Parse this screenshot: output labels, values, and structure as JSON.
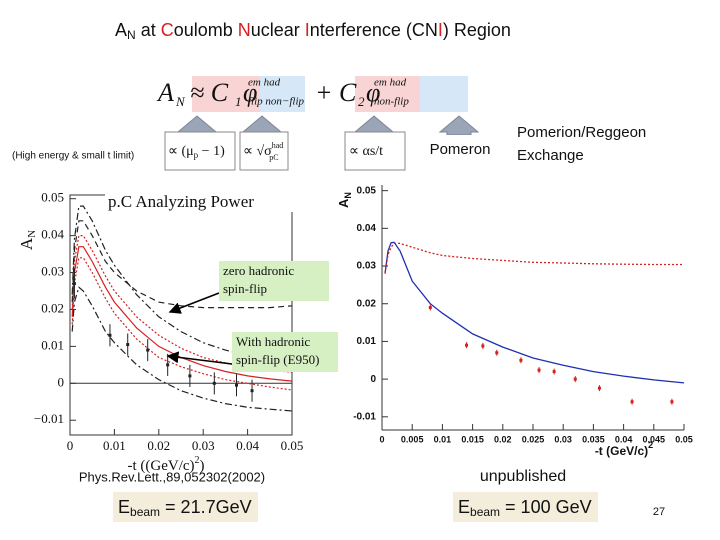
{
  "slide": {
    "title": [
      "A",
      "N",
      " at ",
      "C",
      "oulomb ",
      "N",
      "uclear ",
      "I",
      "nterference (CN",
      "I",
      ") Region"
    ],
    "formula": {
      "lhs": "A",
      "lhs_sub": "N",
      "approx": "≈ C",
      "c1_sub": "1",
      "phi": "φ",
      "sup1": "em had",
      "sub1": "flip non−flip",
      "plus": "+ C",
      "c2_sub": "2",
      "sup2": "em had",
      "sub2": "non-flip"
    },
    "limit_note": "(High energy & small t limit)",
    "prop1": [
      "∝ (μ",
      "p",
      " − 1)"
    ],
    "prop2": [
      "∝ √σ",
      "had",
      "pC"
    ],
    "prop3": "∝ αs/t",
    "pomeron": "Pomeron",
    "reggeon": [
      "Pomerion/Reggeon",
      "Exchange"
    ],
    "reference": "Phys.Rev.Lett.,89,052302(2002)",
    "unpublished": "unpublished",
    "ebeam_left": [
      "E",
      "beam",
      " = 21.7GeV"
    ],
    "ebeam_right": [
      "E",
      "beam",
      " = 100 GeV"
    ],
    "page": "27"
  },
  "chart_data": [
    {
      "type": "line",
      "title": "p.C Analyzing Power",
      "x_label": [
        "-t ((GeV/c)",
        "2",
        ")"
      ],
      "y_label": [
        "A",
        "N"
      ],
      "xlim": [
        0,
        0.05
      ],
      "ylim": [
        -0.014,
        0.051
      ],
      "xticks": [
        0,
        0.01,
        0.02,
        0.03,
        0.04,
        0.05
      ],
      "yticks": [
        {
          "value": -0.01,
          "label": "−0.01"
        },
        0,
        0.01,
        0.02,
        0.03,
        0.04,
        0.05
      ],
      "annotations": [
        {
          "lines": [
            "zero hadronic",
            "spin-flip"
          ]
        },
        {
          "lines": [
            "With hadronic",
            "spin-flip (E950)"
          ]
        }
      ],
      "series": [
        {
          "color": "#d62020",
          "style": "solid",
          "x": [
            0.0005,
            0.001,
            0.002,
            0.003,
            0.005,
            0.008,
            0.01,
            0.015,
            0.02,
            0.025,
            0.03,
            0.035,
            0.04,
            0.045,
            0.05
          ],
          "values": [
            0.018,
            0.03,
            0.037,
            0.037,
            0.033,
            0.026,
            0.022,
            0.015,
            0.01,
            0.007,
            0.0048,
            0.0032,
            0.002,
            0.0012,
            0.0006
          ]
        },
        {
          "color": "#d62020",
          "style": "dotted",
          "x": [
            0.0005,
            0.001,
            0.002,
            0.003,
            0.005,
            0.008,
            0.01,
            0.015,
            0.02,
            0.025,
            0.03,
            0.035,
            0.04,
            0.045,
            0.05
          ],
          "values": [
            0.02,
            0.033,
            0.04,
            0.04,
            0.036,
            0.029,
            0.025,
            0.018,
            0.013,
            0.0095,
            0.007,
            0.0055,
            0.0043,
            0.0035,
            0.003
          ]
        },
        {
          "color": "#d62020",
          "style": "dotted",
          "x": [
            0.0005,
            0.001,
            0.002,
            0.003,
            0.005,
            0.008,
            0.01,
            0.015,
            0.02,
            0.025,
            0.03,
            0.035,
            0.04,
            0.045,
            0.05
          ],
          "values": [
            0.016,
            0.027,
            0.034,
            0.034,
            0.03,
            0.023,
            0.019,
            0.012,
            0.007,
            0.0045,
            0.0026,
            0.001,
            0,
            -0.001,
            -0.0018
          ]
        },
        {
          "color": "#222222",
          "style": "dashed",
          "x": [
            0.0005,
            0.001,
            0.002,
            0.003,
            0.005,
            0.008,
            0.01,
            0.015,
            0.02,
            0.025,
            0.03,
            0.035,
            0.04,
            0.045,
            0.05
          ],
          "values": [
            0.022,
            0.036,
            0.044,
            0.044,
            0.04,
            0.033,
            0.03,
            0.025,
            0.022,
            0.021,
            0.0205,
            0.0205,
            0.0205,
            0.0205,
            0.021
          ]
        },
        {
          "color": "#222222",
          "style": "dashdot",
          "x": [
            0.0005,
            0.001,
            0.002,
            0.003,
            0.005,
            0.008,
            0.01,
            0.015,
            0.02,
            0.025,
            0.03,
            0.035,
            0.04,
            0.045,
            0.05
          ],
          "values": [
            0.024,
            0.039,
            0.048,
            0.048,
            0.044,
            0.036,
            0.032,
            0.024,
            0.018,
            0.014,
            0.011,
            0.009,
            0.0075,
            0.0065,
            0.006
          ]
        },
        {
          "color": "#222222",
          "style": "dashdot",
          "x": [
            0.0005,
            0.001,
            0.002,
            0.003,
            0.005,
            0.008,
            0.01,
            0.015,
            0.02,
            0.025,
            0.03,
            0.035,
            0.04,
            0.045,
            0.05
          ],
          "values": [
            0.014,
            0.022,
            0.026,
            0.025,
            0.021,
            0.014,
            0.011,
            0.005,
            0.001,
            -0.002,
            -0.004,
            -0.0055,
            -0.0065,
            -0.007,
            -0.0075
          ]
        },
        {
          "color": "#222222",
          "style": "markers",
          "x": [
            0.001,
            0.009,
            0.013,
            0.0175,
            0.022,
            0.027,
            0.0325,
            0.0375,
            0.041
          ],
          "values": [
            0.027,
            0.013,
            0.0105,
            0.009,
            0.005,
            0.002,
            0,
            -0.0005,
            -0.002
          ],
          "errors": [
            0.004,
            0.003,
            0.003,
            0.003,
            0.003,
            0.003,
            0.003,
            0.003,
            0.003
          ]
        }
      ]
    },
    {
      "type": "line",
      "x_label": [
        "-t (GeV/c)",
        "2"
      ],
      "y_label": [
        "A",
        "N"
      ],
      "xlim": [
        0,
        0.05
      ],
      "ylim": [
        -0.0135,
        0.0515
      ],
      "xticks": [
        0,
        0.005,
        0.01,
        0.015,
        0.02,
        0.025,
        0.03,
        0.035,
        0.04,
        0.045,
        0.05
      ],
      "yticks": [
        -0.01,
        0,
        0.01,
        0.02,
        0.03,
        0.04,
        0.05
      ],
      "series": [
        {
          "color": "#1f2fb0",
          "style": "solid",
          "x": [
            0.0005,
            0.001,
            0.0015,
            0.002,
            0.003,
            0.005,
            0.008,
            0.01,
            0.015,
            0.02,
            0.025,
            0.03,
            0.035,
            0.04,
            0.045,
            0.05
          ],
          "values": [
            0.028,
            0.034,
            0.0362,
            0.0363,
            0.034,
            0.026,
            0.02,
            0.0175,
            0.012,
            0.0085,
            0.0056,
            0.0037,
            0.002,
            0.0008,
            -0.0002,
            -0.001
          ]
        },
        {
          "color": "#d62020",
          "style": "dotted",
          "x": [
            0.0005,
            0.001,
            0.0015,
            0.002,
            0.003,
            0.005,
            0.008,
            0.01,
            0.015,
            0.02,
            0.025,
            0.03,
            0.035,
            0.04,
            0.045,
            0.05
          ],
          "values": [
            0.028,
            0.033,
            0.035,
            0.036,
            0.036,
            0.035,
            0.0335,
            0.0328,
            0.032,
            0.0315,
            0.031,
            0.0308,
            0.0306,
            0.0305,
            0.0304,
            0.0304
          ]
        },
        {
          "color": "#d62020",
          "style": "markers",
          "x": [
            0.008,
            0.014,
            0.0167,
            0.019,
            0.023,
            0.026,
            0.0285,
            0.032,
            0.036,
            0.0414,
            0.048
          ],
          "values": [
            0.019,
            0.009,
            0.0088,
            0.007,
            0.005,
            0.0024,
            0.002,
            0,
            -0.0024,
            -0.006,
            -0.006
          ],
          "errors": [
            0.0008,
            0.0008,
            0.0008,
            0.0008,
            0.0008,
            0.0008,
            0.0008,
            0.0008,
            0.0008,
            0.0008,
            0.0008
          ]
        }
      ]
    }
  ]
}
